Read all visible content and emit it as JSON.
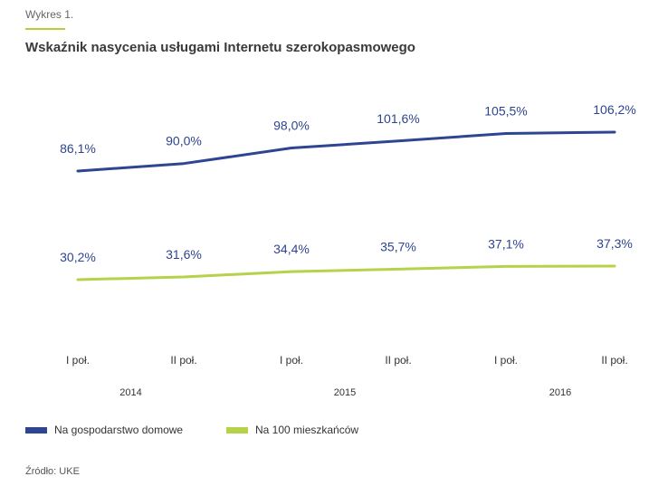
{
  "header": {
    "eyebrow": "Wykres 1.",
    "title": "Wskaźnik nasycenia usługami Internetu szerokopasmowego"
  },
  "chart_data": {
    "type": "line",
    "title": "Wskaźnik nasycenia usługami Internetu szerokopasmowego",
    "categories": [
      "I poł.",
      "II poł.",
      "I poł.",
      "II poł.",
      "I poł.",
      "II poł."
    ],
    "years": [
      {
        "label": "2014",
        "span": [
          0,
          1
        ]
      },
      {
        "label": "2015",
        "span": [
          2,
          3
        ]
      },
      {
        "label": "2016",
        "span": [
          4,
          5
        ]
      }
    ],
    "series": [
      {
        "name": "Na gospodarstwo domowe",
        "color": "#2e4592",
        "values": [
          86.1,
          90.0,
          98.0,
          101.6,
          105.5,
          106.2
        ],
        "labels": [
          "86,1%",
          "90,0%",
          "98,0%",
          "101,6%",
          "105,5%",
          "106,2%"
        ]
      },
      {
        "name": "Na 100 mieszkańców",
        "color": "#b5d24a",
        "values": [
          30.2,
          31.6,
          34.4,
          35.7,
          37.1,
          37.3
        ],
        "labels": [
          "30,2%",
          "31,6%",
          "34,4%",
          "35,7%",
          "37,1%",
          "37,3%"
        ]
      }
    ],
    "xlabel": "",
    "ylabel": "",
    "grid": false,
    "legend": "bottom-left"
  },
  "legend": {
    "items": [
      {
        "label": "Na gospodarstwo domowe",
        "color": "#2e4592"
      },
      {
        "label": "Na 100 mieszkańców",
        "color": "#b5d24a"
      }
    ]
  },
  "footer": {
    "source": "Źródło: UKE"
  },
  "colors": {
    "accent": "#b5cf3b",
    "label_blue": "#2e4592"
  }
}
